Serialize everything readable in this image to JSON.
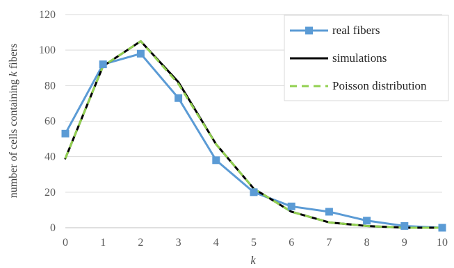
{
  "chart_data": {
    "type": "line",
    "x": [
      0,
      1,
      2,
      3,
      4,
      5,
      6,
      7,
      8,
      9,
      10
    ],
    "xlabel": "k",
    "ylabel": "number of cells containing k fibers",
    "ylim": [
      0,
      120
    ],
    "yticks": [
      0,
      20,
      40,
      60,
      80,
      100,
      120
    ],
    "xticks": [
      0,
      1,
      2,
      3,
      4,
      5,
      6,
      7,
      8,
      9,
      10
    ],
    "grid": "horizontal",
    "legend_position": "top-right",
    "series": [
      {
        "name": "real fibers",
        "values": [
          53,
          92,
          98,
          73,
          38,
          20,
          12,
          9,
          4,
          1,
          0
        ],
        "color": "#5b9bd5",
        "style": "solid",
        "marker": "square"
      },
      {
        "name": "simulations",
        "values": [
          39,
          91,
          105,
          82,
          47,
          22,
          9,
          3,
          1,
          0,
          0
        ],
        "color": "#000000",
        "style": "solid",
        "marker": "none"
      },
      {
        "name": "Poisson distribution",
        "values": [
          39,
          91,
          105,
          81,
          47,
          22,
          9,
          3,
          1,
          0,
          0
        ],
        "color": "#92d050",
        "style": "dashed",
        "marker": "none"
      }
    ]
  }
}
